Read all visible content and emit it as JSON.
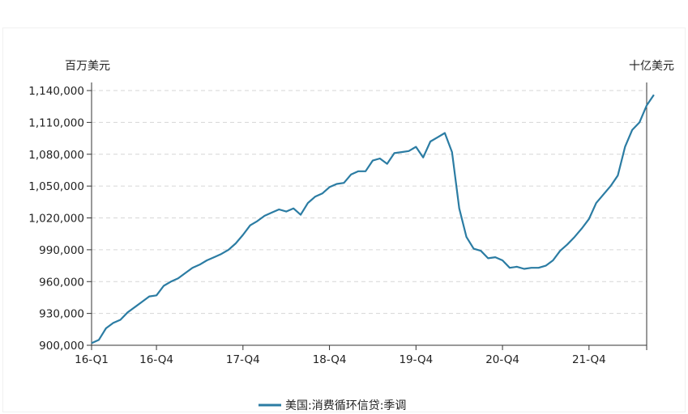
{
  "chart_data": {
    "type": "line",
    "left_unit": "百万美元",
    "right_unit": "十亿美元",
    "ylim": [
      900000,
      1140000
    ],
    "yticks": [
      900000,
      930000,
      960000,
      990000,
      1020000,
      1050000,
      1080000,
      1110000,
      1140000
    ],
    "ytick_labels": [
      "900,000",
      "930,000",
      "960,000",
      "990,000",
      "1,020,000",
      "1,050,000",
      "1,080,000",
      "1,110,000",
      "1,140,000"
    ],
    "x_tick_labels": [
      "16-Q1",
      "16-Q4",
      "17-Q4",
      "18-Q4",
      "19-Q4",
      "20-Q4",
      "21-Q4"
    ],
    "x_tick_months": [
      0,
      9,
      21,
      33,
      45,
      57,
      69
    ],
    "x_range_months": [
      0,
      77
    ],
    "grid": "horizontal dashed",
    "legend_position": "bottom",
    "color": "#2b7ca3",
    "series": [
      {
        "name": "美国:消费循环信贷:季调",
        "x_start": "2016-01",
        "values": [
          902000,
          905000,
          916000,
          921000,
          924000,
          931000,
          936000,
          941000,
          946000,
          947000,
          956000,
          960000,
          963000,
          968000,
          973000,
          976000,
          980000,
          983000,
          986000,
          990000,
          996000,
          1004000,
          1013000,
          1017000,
          1022000,
          1025000,
          1028000,
          1026000,
          1029000,
          1023000,
          1034000,
          1040000,
          1043000,
          1049000,
          1052000,
          1053000,
          1061000,
          1064000,
          1064000,
          1074000,
          1076000,
          1071000,
          1081000,
          1082000,
          1083000,
          1087000,
          1077000,
          1092000,
          1096000,
          1100000,
          1082000,
          1029000,
          1002000,
          991000,
          989000,
          982000,
          983000,
          980000,
          973000,
          974000,
          972000,
          973000,
          973000,
          975000,
          980000,
          989000,
          995000,
          1002000,
          1010000,
          1019000,
          1034000,
          1042000,
          1050000,
          1060000,
          1087000,
          1103000,
          1110000,
          1126000,
          1136000
        ]
      }
    ]
  }
}
